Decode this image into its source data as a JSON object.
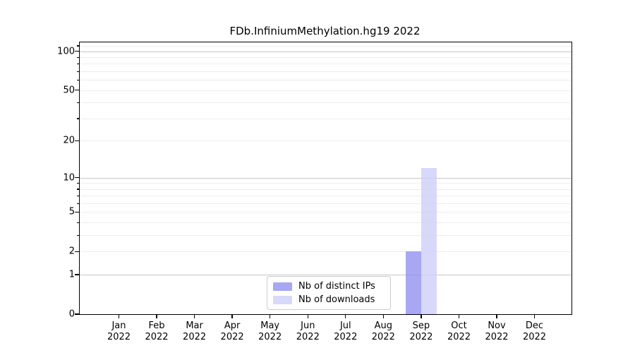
{
  "chart_data": {
    "type": "bar",
    "title": "FDb.InfiniumMethylation.hg19 2022",
    "categories": [
      "Jan 2022",
      "Feb 2022",
      "Mar 2022",
      "Apr 2022",
      "May 2022",
      "Jun 2022",
      "Jul 2022",
      "Aug 2022",
      "Sep 2022",
      "Oct 2022",
      "Nov 2022",
      "Dec 2022"
    ],
    "x_tick_month": [
      "Jan",
      "Feb",
      "Mar",
      "Apr",
      "May",
      "Jun",
      "Jul",
      "Aug",
      "Sep",
      "Oct",
      "Nov",
      "Dec"
    ],
    "x_tick_year": "2022",
    "series": [
      {
        "name": "Nb of distinct IPs",
        "color": "#8a8af0",
        "alpha": 0.75,
        "values": [
          0,
          0,
          0,
          0,
          0,
          0,
          0,
          0,
          2,
          0,
          0,
          0
        ]
      },
      {
        "name": "Nb of downloads",
        "color": "#cecefa",
        "alpha": 0.8,
        "values": [
          0,
          0,
          0,
          0,
          0,
          0,
          0,
          0,
          12,
          0,
          0,
          0
        ]
      }
    ],
    "y_ticks": [
      0,
      1,
      2,
      5,
      10,
      20,
      50,
      100
    ],
    "y_major_gridlines": [
      1,
      10,
      100
    ],
    "y_minor_gridlines": [
      2,
      3,
      4,
      5,
      6,
      7,
      8,
      9,
      20,
      30,
      40,
      50,
      60,
      70,
      80,
      90,
      110
    ],
    "scale": "log1p",
    "ylim": [
      0,
      117
    ],
    "grid": true,
    "legend_position": "inside-bottom-center",
    "colors": {
      "major_grid": "#c6c6c6",
      "minor_grid": "#ededed",
      "axis": "#000000",
      "background": "#ffffff"
    }
  }
}
